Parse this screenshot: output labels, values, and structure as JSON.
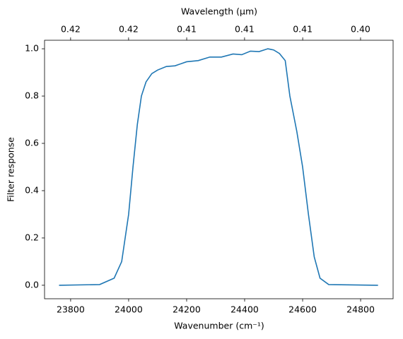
{
  "chart_data": {
    "type": "line",
    "xlabel": "Wavenumber (cm⁻¹)",
    "x2label": "Wavelength (μm)",
    "ylabel": "Filter response",
    "xlim": [
      23710,
      24912
    ],
    "ylim": [
      -0.057,
      1.036
    ],
    "xticks": [
      23800,
      24000,
      24200,
      24400,
      24600,
      24800
    ],
    "x2ticks": [
      {
        "value": 0.42017,
        "label": "0.42"
      },
      {
        "value": 0.41667,
        "label": "0.42"
      },
      {
        "value": 0.41322,
        "label": "0.41"
      },
      {
        "value": 0.40984,
        "label": "0.41"
      },
      {
        "value": 0.4065,
        "label": "0.41"
      },
      {
        "value": 0.40323,
        "label": "0.40"
      }
    ],
    "yticks": [
      {
        "value": 0,
        "label": "0.0"
      },
      0.2,
      0.4,
      0.6,
      0.8,
      {
        "value": 1,
        "label": "1.0"
      }
    ],
    "series": [
      {
        "color": "#1f77b4",
        "x": [
          23760,
          23900,
          23950,
          23976,
          24000,
          24015,
          24030,
          24044,
          24060,
          24080,
          24100,
          24130,
          24160,
          24200,
          24240,
          24280,
          24320,
          24360,
          24390,
          24420,
          24450,
          24480,
          24500,
          24520,
          24540,
          24556,
          24580,
          24600,
          24620,
          24640,
          24660,
          24690,
          24860
        ],
        "values": [
          0,
          0.003,
          0.03,
          0.1,
          0.3,
          0.5,
          0.68,
          0.8,
          0.86,
          0.895,
          0.91,
          0.925,
          0.928,
          0.945,
          0.95,
          0.965,
          0.965,
          0.978,
          0.975,
          0.99,
          0.988,
          1.0,
          0.995,
          0.98,
          0.95,
          0.8,
          0.65,
          0.5,
          0.3,
          0.12,
          0.03,
          0.003,
          0
        ]
      }
    ]
  }
}
